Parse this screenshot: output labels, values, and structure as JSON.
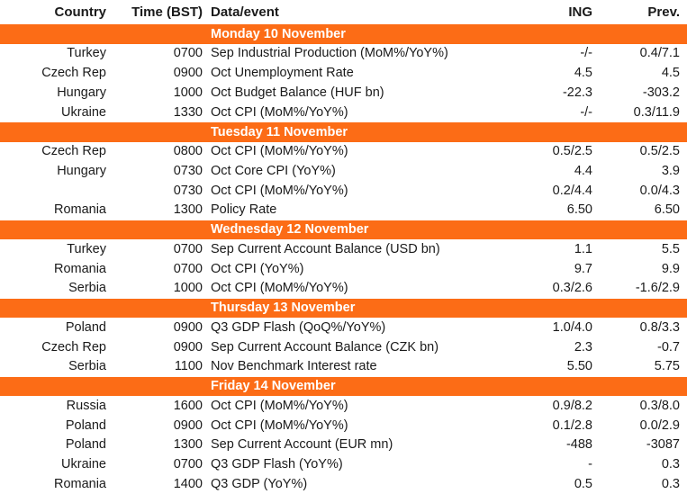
{
  "colors": {
    "accent": "#FC6C16",
    "day_header_text": "#FFFFFF",
    "text": "#1A1A1A",
    "background": "#FFFFFF"
  },
  "chart_data": {
    "type": "table",
    "columns": {
      "country": "Country",
      "time": "Time (BST)",
      "event": "Data/event",
      "ing": "ING",
      "prev": "Prev."
    },
    "sections": [
      {
        "day": "Monday 10 November",
        "rows": [
          {
            "country": "Turkey",
            "time": "0700",
            "event": "Sep Industrial Production (MoM%/YoY%)",
            "ing": "-/-",
            "prev": "0.4/7.1"
          },
          {
            "country": "Czech Rep",
            "time": "0900",
            "event": "Oct Unemployment Rate",
            "ing": "4.5",
            "prev": "4.5"
          },
          {
            "country": "Hungary",
            "time": "1000",
            "event": "Oct Budget Balance (HUF bn)",
            "ing": "-22.3",
            "prev": "-303.2"
          },
          {
            "country": "Ukraine",
            "time": "1330",
            "event": "Oct CPI (MoM%/YoY%)",
            "ing": "-/-",
            "prev": "0.3/11.9"
          }
        ]
      },
      {
        "day": "Tuesday 11 November",
        "rows": [
          {
            "country": "Czech Rep",
            "time": "0800",
            "event": "Oct CPI (MoM%/YoY%)",
            "ing": "0.5/2.5",
            "prev": "0.5/2.5"
          },
          {
            "country": "Hungary",
            "time": "0730",
            "event": "Oct Core CPI (YoY%)",
            "ing": "4.4",
            "prev": "3.9"
          },
          {
            "country": "",
            "time": "0730",
            "event": "Oct CPI (MoM%/YoY%)",
            "ing": "0.2/4.4",
            "prev": "0.0/4.3"
          },
          {
            "country": "Romania",
            "time": "1300",
            "event": "Policy Rate",
            "ing": "6.50",
            "prev": "6.50"
          }
        ]
      },
      {
        "day": "Wednesday 12 November",
        "rows": [
          {
            "country": "Turkey",
            "time": "0700",
            "event": "Sep Current Account Balance (USD bn)",
            "ing": "1.1",
            "prev": "5.5"
          },
          {
            "country": "Romania",
            "time": "0700",
            "event": "Oct CPI (YoY%)",
            "ing": "9.7",
            "prev": "9.9"
          },
          {
            "country": "Serbia",
            "time": "1000",
            "event": "Oct CPI (MoM%/YoY%)",
            "ing": "0.3/2.6",
            "prev": "-1.6/2.9"
          }
        ]
      },
      {
        "day": "Thursday 13 November",
        "rows": [
          {
            "country": "Poland",
            "time": "0900",
            "event": "Q3 GDP Flash (QoQ%/YoY%)",
            "ing": "1.0/4.0",
            "prev": "0.8/3.3"
          },
          {
            "country": "Czech Rep",
            "time": "0900",
            "event": "Sep Current Account Balance (CZK bn)",
            "ing": "2.3",
            "prev": "-0.7"
          },
          {
            "country": "Serbia",
            "time": "1100",
            "event": "Nov Benchmark Interest rate",
            "ing": "5.50",
            "prev": "5.75"
          }
        ]
      },
      {
        "day": "Friday 14 November",
        "rows": [
          {
            "country": "Russia",
            "time": "1600",
            "event": "Oct CPI (MoM%/YoY%)",
            "ing": "0.9/8.2",
            "prev": "0.3/8.0"
          },
          {
            "country": "Poland",
            "time": "0900",
            "event": "Oct CPI (MoM%/YoY%)",
            "ing": "0.1/2.8",
            "prev": "0.0/2.9"
          },
          {
            "country": "Poland",
            "time": "1300",
            "event": "Sep Current Account (EUR mn)",
            "ing": "-488",
            "prev": "-3087"
          },
          {
            "country": "Ukraine",
            "time": "0700",
            "event": "Q3 GDP Flash (YoY%)",
            "ing": "-",
            "prev": "0.3"
          },
          {
            "country": "Romania",
            "time": "1400",
            "event": "Q3 GDP (YoY%)",
            "ing": "0.5",
            "prev": "0.3"
          }
        ]
      }
    ]
  }
}
